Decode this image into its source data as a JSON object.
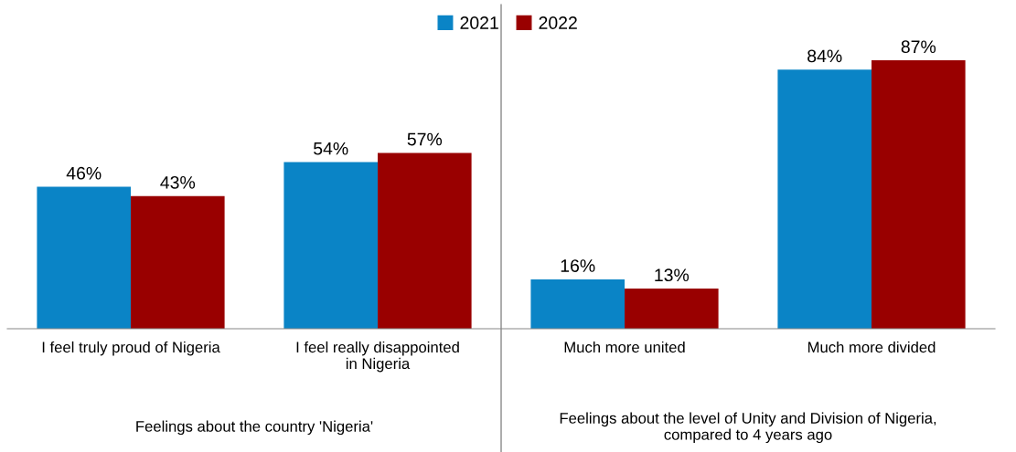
{
  "chart_data": {
    "type": "bar",
    "categories": [
      "I feel truly proud of Nigeria",
      "I feel really disappointed\nin Nigeria",
      "Much more united",
      "Much more divided"
    ],
    "series": [
      {
        "name": "2021",
        "color": "#0a84c6",
        "values": [
          46,
          54,
          16,
          84
        ],
        "value_labels": [
          "46%",
          "54%",
          "16%",
          "84%"
        ]
      },
      {
        "name": "2022",
        "color": "#990000",
        "values": [
          43,
          57,
          13,
          87
        ],
        "value_labels": [
          "43%",
          "57%",
          "13%",
          "87%"
        ]
      }
    ],
    "annotations": [
      "Feelings about the country 'Nigeria'",
      "Feelings about the level of Unity and Division of Nigeria,\ncompared to 4 years ago"
    ],
    "legend": "top",
    "grid": false
  }
}
